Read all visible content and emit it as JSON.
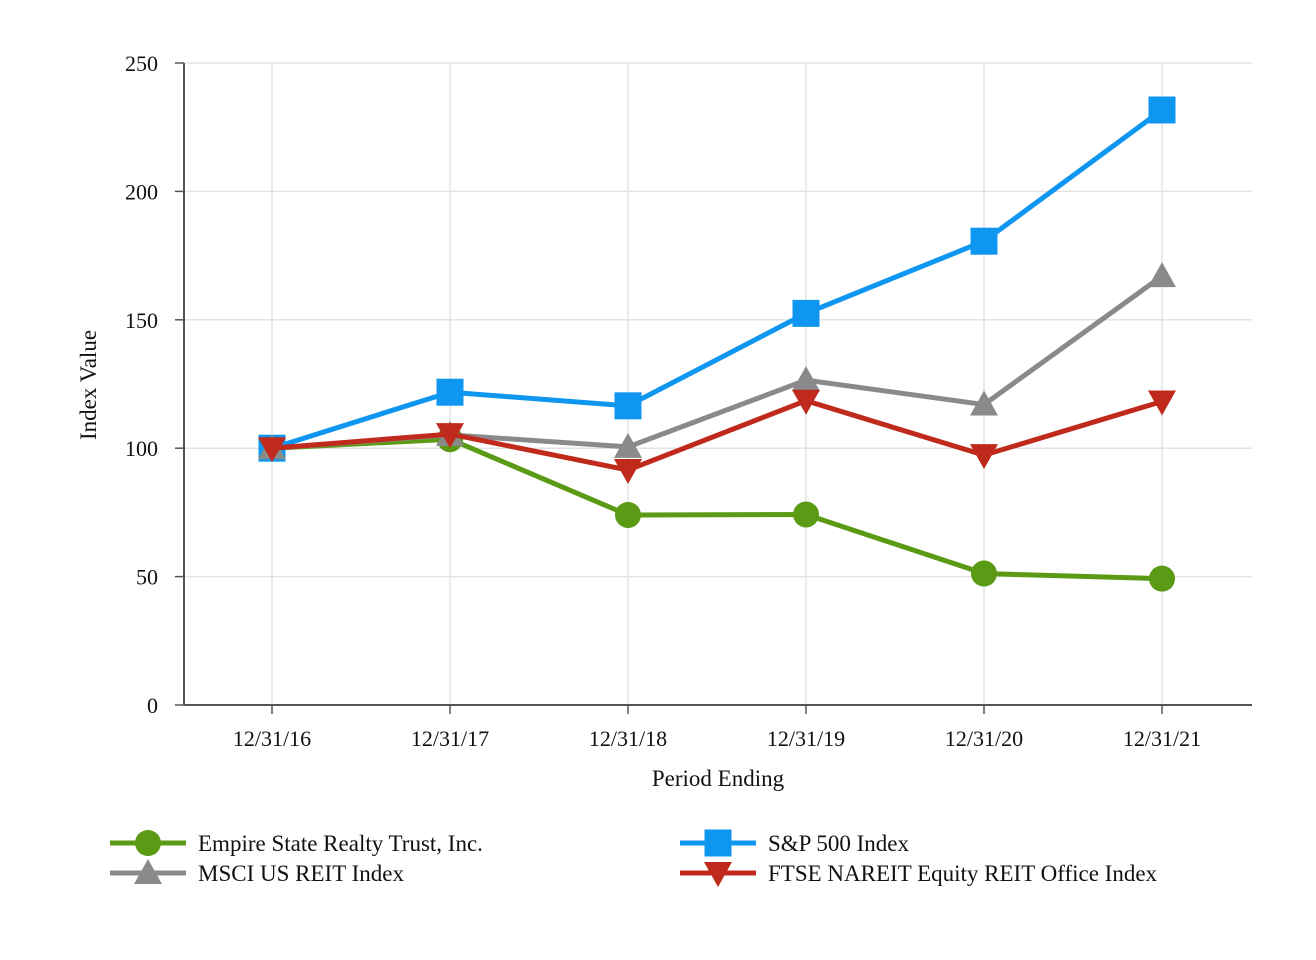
{
  "chart_data": {
    "type": "line",
    "title": "",
    "xlabel": "Period Ending",
    "ylabel": "Index Value",
    "categories": [
      "12/31/16",
      "12/31/17",
      "12/31/18",
      "12/31/19",
      "12/31/20",
      "12/31/21"
    ],
    "ylim": [
      0,
      250
    ],
    "yticks": [
      0,
      50,
      100,
      150,
      200,
      250
    ],
    "grid": true,
    "legend_position": "bottom",
    "series": [
      {
        "name": "Empire State Realty Trust, Inc.",
        "marker": "circle",
        "color": "#5b9a14",
        "values": [
          100,
          103.5,
          74,
          74.2,
          51.2,
          49.2
        ]
      },
      {
        "name": "S&P 500 Index",
        "marker": "square",
        "color": "#0f96f0",
        "values": [
          100,
          121.8,
          116.5,
          152.5,
          180.6,
          231.7
        ]
      },
      {
        "name": "MSCI US REIT Index",
        "marker": "triangle-up",
        "color": "#8a8a8a",
        "values": [
          100,
          105.2,
          100.5,
          126.5,
          117,
          167
        ]
      },
      {
        "name": "FTSE NAREIT Equity REIT Office Index",
        "marker": "triangle-down",
        "color": "#c02a1d",
        "values": [
          100,
          105.5,
          91.5,
          118.5,
          97.3,
          118.2
        ]
      }
    ]
  }
}
